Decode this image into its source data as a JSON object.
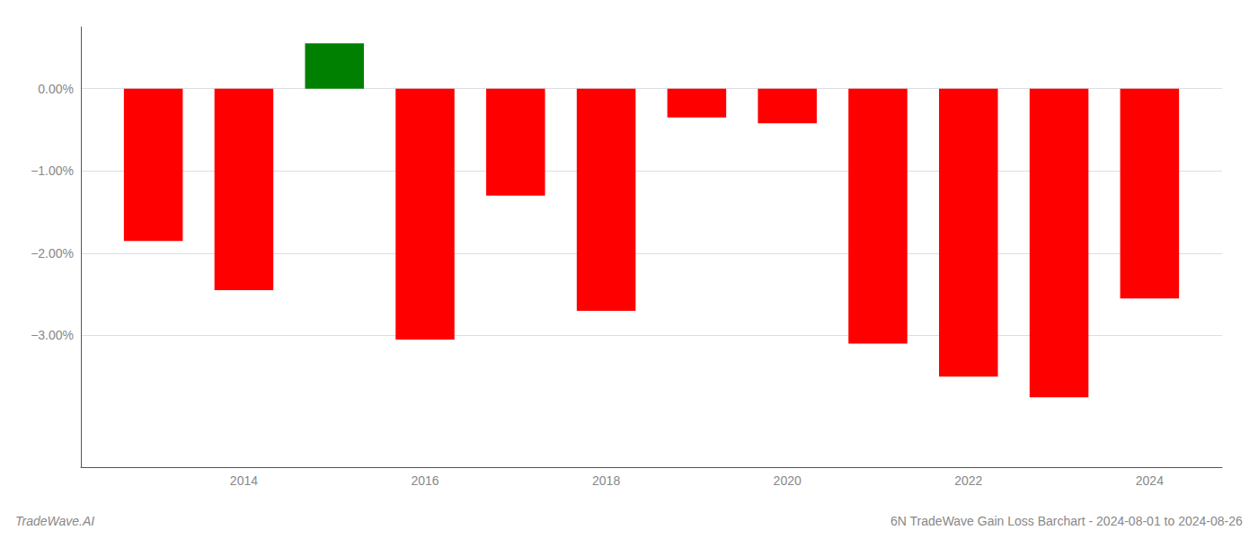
{
  "chart_data": {
    "type": "bar",
    "title": "6N TradeWave Gain Loss Barchart - 2024-08-01 to 2024-08-26",
    "subtitle": "TradeWave.AI",
    "x": [
      2013,
      2014,
      2015,
      2016,
      2017,
      2018,
      2019,
      2020,
      2021,
      2022,
      2023,
      2024
    ],
    "values": [
      -1.85,
      -2.45,
      0.55,
      -3.05,
      -1.3,
      -2.7,
      -0.35,
      -0.42,
      -3.1,
      -3.5,
      -3.75,
      -2.55
    ],
    "colors": [
      "#ff0000",
      "#ff0000",
      "#008000",
      "#ff0000",
      "#ff0000",
      "#ff0000",
      "#ff0000",
      "#ff0000",
      "#ff0000",
      "#ff0000",
      "#ff0000",
      "#ff0000"
    ],
    "xlim": [
      2012.2,
      2024.8
    ],
    "xticks": [
      2014,
      2016,
      2018,
      2020,
      2022,
      2024
    ],
    "ylim": [
      -4.6,
      0.75
    ],
    "yticks": [
      {
        "value": 0.0,
        "label": "0.00%"
      },
      {
        "value": -1.0,
        "label": "−1.00%"
      },
      {
        "value": -2.0,
        "label": "−2.00%"
      },
      {
        "value": -3.0,
        "label": "−3.00%"
      }
    ],
    "grid": true
  }
}
